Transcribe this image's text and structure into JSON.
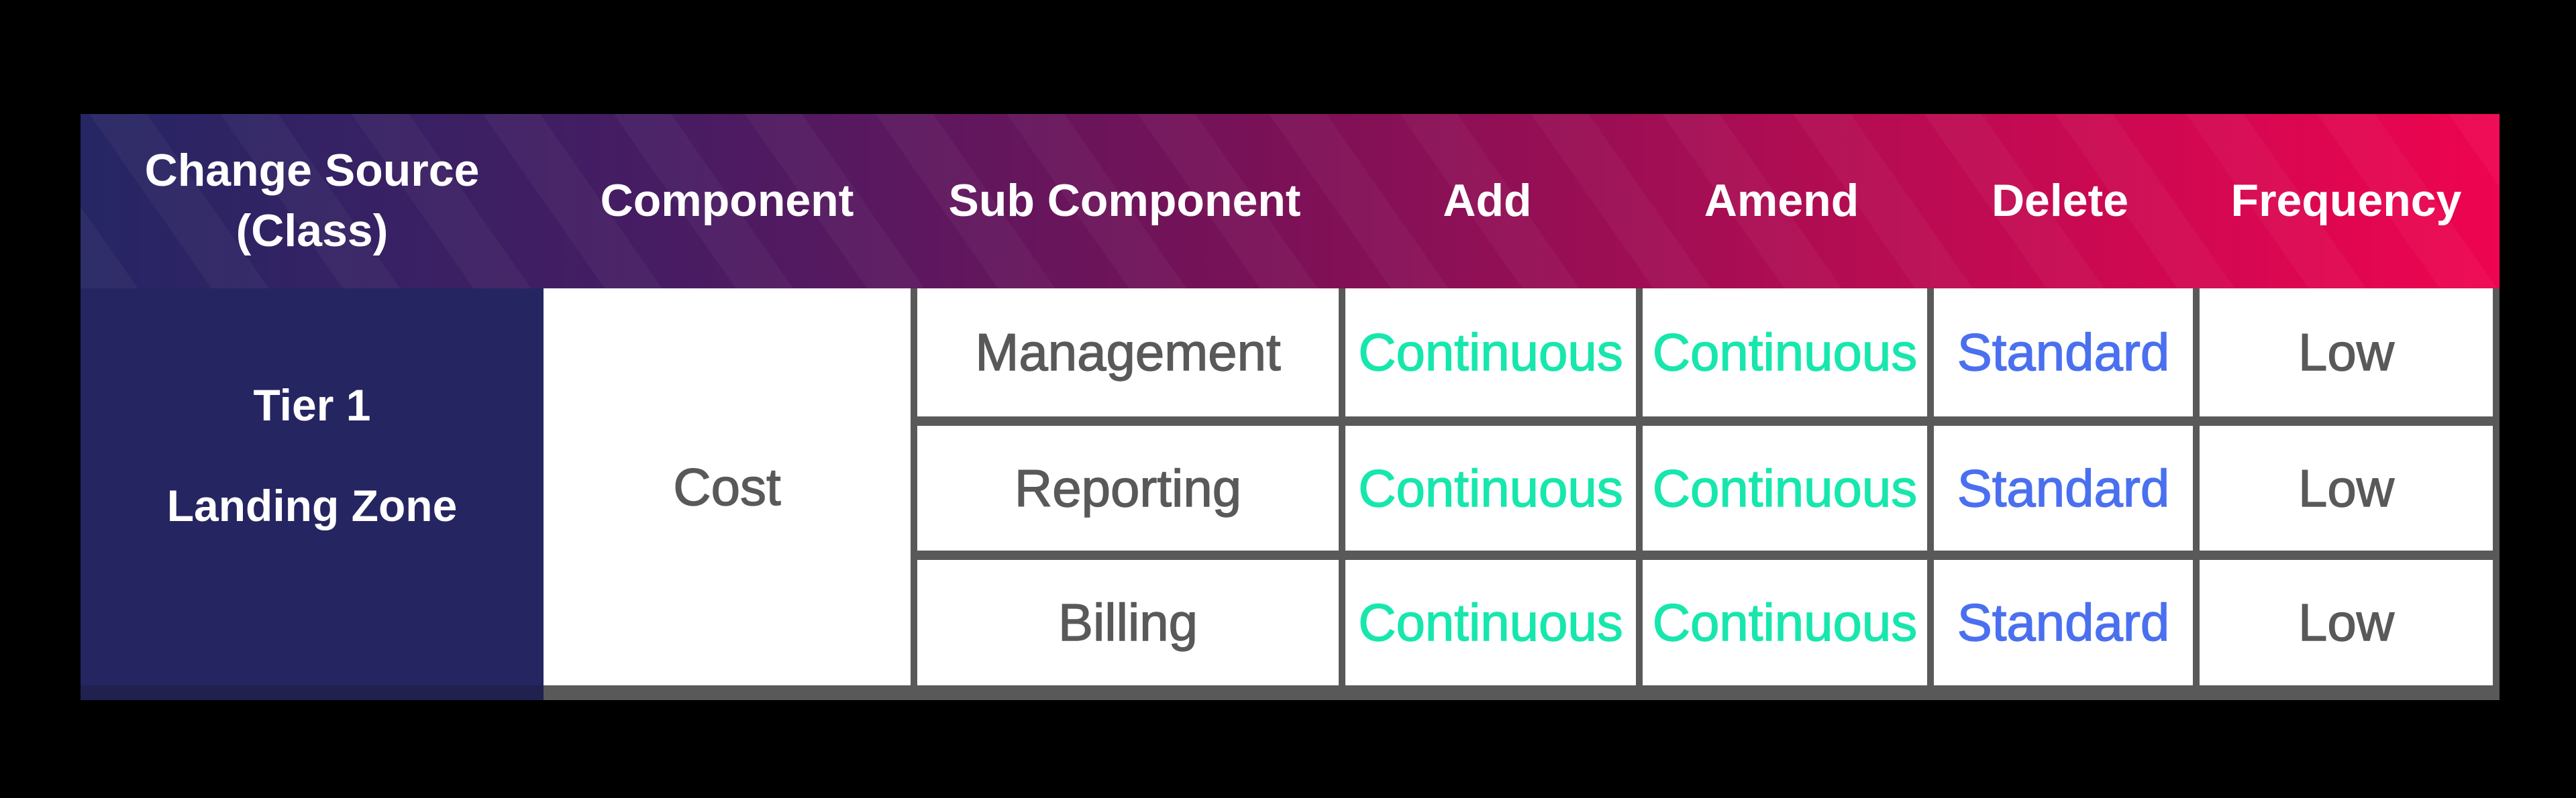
{
  "header": {
    "col1_line1": "Change Source",
    "col1_line2": "(Class)",
    "component": "Component",
    "sub_component": "Sub Component",
    "add": "Add",
    "amend": "Amend",
    "delete": "Delete",
    "frequency": "Frequency"
  },
  "group": {
    "tier_line1": "Tier 1",
    "tier_line2": "Landing Zone",
    "component": "Cost"
  },
  "rows": [
    {
      "sub_component": "Management",
      "add": "Continuous",
      "amend": "Continuous",
      "delete": "Standard",
      "frequency": "Low"
    },
    {
      "sub_component": "Reporting",
      "add": "Continuous",
      "amend": "Continuous",
      "delete": "Standard",
      "frequency": "Low"
    },
    {
      "sub_component": "Billing",
      "add": "Continuous",
      "amend": "Continuous",
      "delete": "Standard",
      "frequency": "Low"
    }
  ],
  "colors": {
    "gradient_start": "#262664",
    "gradient_q1": "#471C63",
    "gradient_mid": "#7A1157",
    "gradient_q3": "#B60C52",
    "gradient_end": "#EE0450",
    "navy_cell": "#252562",
    "continuous_text": "#17E7AC",
    "standard_text": "#4A70EF",
    "body_text": "#595959",
    "border": "#595959",
    "header_text": "#FFFFFF",
    "background": "#000000"
  }
}
